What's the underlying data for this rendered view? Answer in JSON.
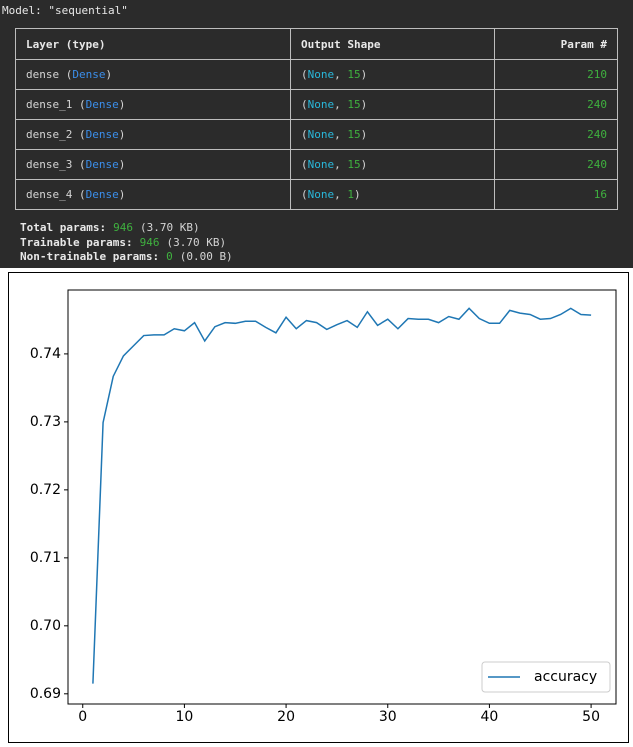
{
  "model_summary": {
    "title": "Model: \"sequential\"",
    "headers": [
      "Layer (type)",
      "Output Shape",
      "Param #"
    ],
    "rows": [
      [
        "dense (Dense)",
        "(None, 15)",
        210
      ],
      [
        "dense_1 (Dense)",
        "(None, 15)",
        240
      ],
      [
        "dense_2 (Dense)",
        "(None, 15)",
        240
      ],
      [
        "dense_3 (Dense)",
        "(None, 15)",
        240
      ],
      [
        "dense_4 (Dense)",
        "(None, 1)",
        16
      ]
    ],
    "totals": [
      {
        "label": "Total params:",
        "value": 946,
        "size": "(3.70 KB)"
      },
      {
        "label": "Trainable params:",
        "value": 946,
        "size": "(3.70 KB)"
      },
      {
        "label": "Non-trainable params:",
        "value": 0,
        "size": "(0.00 B)"
      }
    ]
  },
  "chart_data": {
    "type": "line",
    "x": [
      1,
      2,
      3,
      4,
      5,
      6,
      7,
      8,
      9,
      10,
      11,
      12,
      13,
      14,
      15,
      16,
      17,
      18,
      19,
      20,
      21,
      22,
      23,
      24,
      25,
      26,
      27,
      28,
      29,
      30,
      31,
      32,
      33,
      34,
      35,
      36,
      37,
      38,
      39,
      40,
      41,
      42,
      43,
      44,
      45,
      46,
      47,
      48,
      49,
      50
    ],
    "series": [
      {
        "name": "accuracy",
        "color": "#1f77b4",
        "values": [
          0.6915,
          0.7299,
          0.7367,
          0.7397,
          0.7412,
          0.7427,
          0.7428,
          0.7428,
          0.7437,
          0.7434,
          0.7446,
          0.7419,
          0.744,
          0.7446,
          0.7445,
          0.7448,
          0.7448,
          0.7439,
          0.7431,
          0.7454,
          0.7437,
          0.7449,
          0.7446,
          0.7436,
          0.7443,
          0.7449,
          0.7439,
          0.7462,
          0.7442,
          0.7451,
          0.7437,
          0.7452,
          0.7451,
          0.7451,
          0.7446,
          0.7455,
          0.7451,
          0.7467,
          0.7452,
          0.7445,
          0.7445,
          0.7464,
          0.746,
          0.7458,
          0.7451,
          0.7452,
          0.7458,
          0.7467,
          0.7458,
          0.7457
        ]
      }
    ],
    "xlim": [
      -1.45,
      52.45
    ],
    "ylim": [
      0.6885,
      0.7494
    ],
    "xticks": [
      0,
      10,
      20,
      30,
      40,
      50
    ],
    "yticks": [
      0.69,
      {
        "value": 0.7,
        "label": "0.70"
      },
      0.71,
      0.72,
      0.73,
      0.74
    ],
    "legend": "lower right"
  }
}
